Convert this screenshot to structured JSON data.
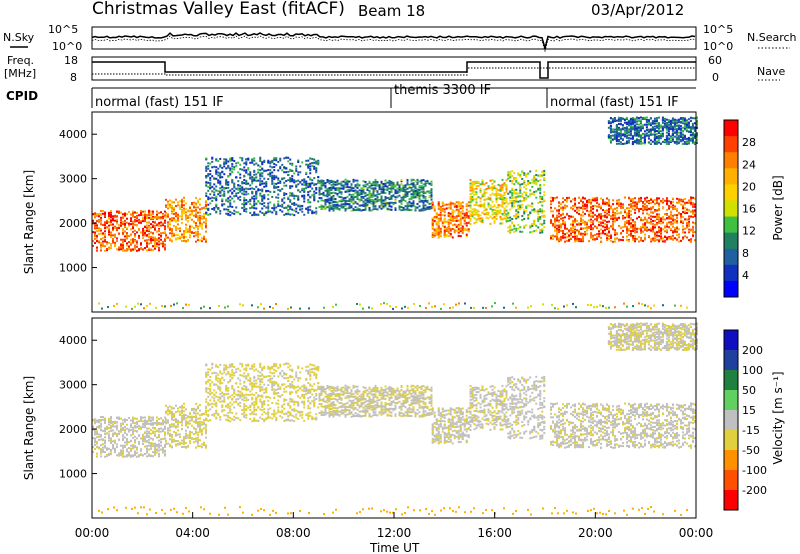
{
  "header": {
    "site": "Christmas Valley East (fitACF)",
    "beam": "Beam 18",
    "date": "03/Apr/2012"
  },
  "noise_panel": {
    "left_label": "N.Sky",
    "right_label": "N.Search",
    "left_ticks": [
      "10^5",
      "10^0"
    ],
    "right_ticks": [
      "10^5",
      "10^0"
    ]
  },
  "freq_panel": {
    "left_label_1": "Freq.",
    "left_label_2": "[MHz]",
    "right_label": "Nave",
    "left_ticks": [
      "18",
      "8"
    ],
    "right_ticks": [
      "60",
      "0"
    ]
  },
  "cpid": {
    "label": "CPID",
    "segments": [
      {
        "start_hour": 0,
        "end_hour": 12,
        "label": "normal (fast) 151 IF"
      },
      {
        "start_hour": 12,
        "end_hour": 18,
        "label": "themis 3300 IF"
      },
      {
        "start_hour": 18,
        "end_hour": 24,
        "label": "normal (fast) 151 IF"
      }
    ]
  },
  "x_axis": {
    "ticks": [
      "00:00",
      "04:00",
      "08:00",
      "12:00",
      "16:00",
      "20:00",
      "00:00"
    ],
    "label": "Time UT"
  },
  "power_colorbar": {
    "title": "Power [dB]",
    "ticks": [
      "28",
      "24",
      "20",
      "16",
      "12",
      "8",
      "4"
    ],
    "colors": [
      "#ff0000",
      "#ff4000",
      "#ff8000",
      "#ffb000",
      "#ffd000",
      "#d0e000",
      "#40c040",
      "#208060",
      "#2060a0",
      "#1030c0",
      "#0000ff"
    ]
  },
  "velocity_colorbar": {
    "title": "Velocity [m s⁻¹]",
    "ticks": [
      "200",
      "100",
      "50",
      "15",
      "-15",
      "-50",
      "-100",
      "-200"
    ],
    "colors": [
      "#1010c0",
      "#2040a0",
      "#208040",
      "#60d060",
      "#c0c0c0",
      "#e0d040",
      "#ff9000",
      "#ff5000",
      "#ff0000"
    ]
  },
  "chart_data": {
    "type": "heatmap",
    "panels": [
      {
        "name": "power",
        "ylabel": "Slant Range [km]",
        "ylim": [
          0,
          4500
        ],
        "yticks": [
          1000,
          2000,
          3000,
          4000
        ],
        "xlim_hours": [
          0,
          24
        ],
        "scale": "Power [dB]",
        "scale_range": [
          0,
          30
        ]
      },
      {
        "name": "velocity",
        "ylabel": "Slant Range [km]",
        "ylim": [
          0,
          4500
        ],
        "yticks": [
          1000,
          2000,
          3000,
          4000
        ],
        "xlim_hours": [
          0,
          24
        ],
        "scale": "Velocity [m s-1]",
        "scale_range": [
          -200,
          200
        ]
      }
    ],
    "echo_regions": [
      {
        "t0": 0.0,
        "t1": 2.9,
        "r0": 1400,
        "r1": 2300,
        "power": 26,
        "velocity": -10
      },
      {
        "t0": 2.9,
        "t1": 4.5,
        "r0": 1600,
        "r1": 2600,
        "power": 22,
        "velocity": -30
      },
      {
        "t0": 4.5,
        "t1": 9.0,
        "r0": 2200,
        "r1": 3500,
        "power": 6,
        "velocity": -40
      },
      {
        "t0": 9.0,
        "t1": 13.5,
        "r0": 2300,
        "r1": 3000,
        "power": 8,
        "velocity": -20
      },
      {
        "t0": 13.5,
        "t1": 15.0,
        "r0": 1700,
        "r1": 2500,
        "power": 24,
        "velocity": -10
      },
      {
        "t0": 15.0,
        "t1": 16.5,
        "r0": 2000,
        "r1": 3000,
        "power": 18,
        "velocity": -15
      },
      {
        "t0": 16.5,
        "t1": 18.0,
        "r0": 1800,
        "r1": 3200,
        "power": 14,
        "velocity": -5
      },
      {
        "t0": 18.2,
        "t1": 24.0,
        "r0": 1600,
        "r1": 2600,
        "power": 26,
        "velocity": -10
      },
      {
        "t0": 20.5,
        "t1": 24.0,
        "r0": 3800,
        "r1": 4400,
        "power": 6,
        "velocity": -20
      }
    ]
  }
}
